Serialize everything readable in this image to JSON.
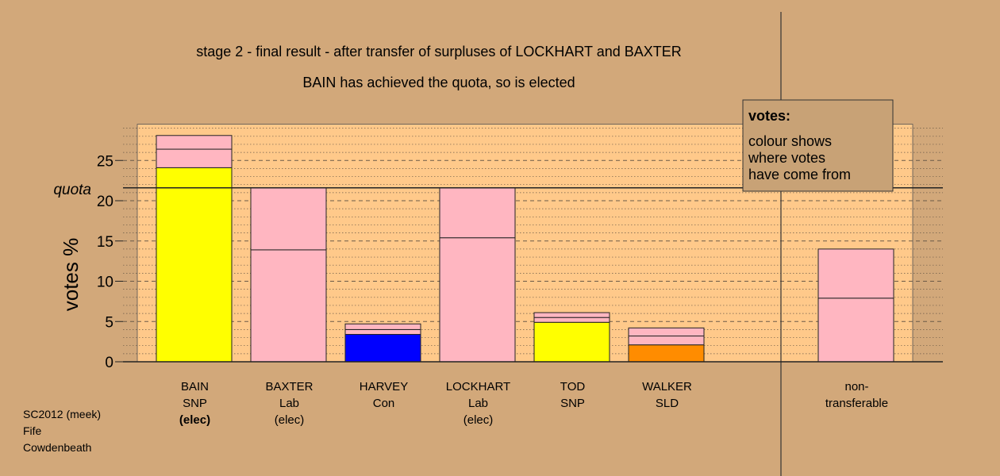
{
  "chart_data": {
    "type": "bar",
    "title": "stage 2 - final result - after transfer of surpluses of LOCKHART and BAXTER",
    "subtitle": "BAIN has achieved the quota, so is elected",
    "ylabel": "votes %",
    "quota_label": "quota",
    "quota_value": 21.6,
    "ylim": [
      0,
      29.5
    ],
    "yticks": [
      0,
      5,
      10,
      15,
      20,
      25
    ],
    "legend": {
      "title": "votes:",
      "lines": [
        "colour shows",
        "where votes",
        "have come from"
      ],
      "placement": "top-right"
    },
    "candidates": [
      {
        "name": "BAIN",
        "party": "SNP",
        "status": "(elec)",
        "status_bold": true,
        "segments": [
          {
            "value": 24.1,
            "color": "#FFFF00"
          },
          {
            "value": 2.3,
            "color": "#FFB6C1"
          },
          {
            "value": 1.7,
            "color": "#FFB6C1"
          }
        ]
      },
      {
        "name": "BAXTER",
        "party": "Lab",
        "status": "(elec)",
        "status_bold": false,
        "segments": [
          {
            "value": 13.9,
            "color": "#FFB6C1"
          },
          {
            "value": 7.7,
            "color": "#FFB6C1"
          }
        ]
      },
      {
        "name": "HARVEY",
        "party": "Con",
        "status": "",
        "status_bold": false,
        "segments": [
          {
            "value": 3.4,
            "color": "#0000FF"
          },
          {
            "value": 0.6,
            "color": "#FFB6C1"
          },
          {
            "value": 0.7,
            "color": "#FFB6C1"
          }
        ]
      },
      {
        "name": "LOCKHART",
        "party": "Lab",
        "status": "(elec)",
        "status_bold": false,
        "segments": [
          {
            "value": 15.4,
            "color": "#FFB6C1"
          },
          {
            "value": 6.2,
            "color": "#FFB6C1"
          }
        ]
      },
      {
        "name": "TOD",
        "party": "SNP",
        "status": "",
        "status_bold": false,
        "segments": [
          {
            "value": 4.9,
            "color": "#FFFF00"
          },
          {
            "value": 0.6,
            "color": "#FFB6C1"
          },
          {
            "value": 0.6,
            "color": "#FFB6C1"
          }
        ]
      },
      {
        "name": "WALKER",
        "party": "SLD",
        "status": "",
        "status_bold": false,
        "segments": [
          {
            "value": 2.1,
            "color": "#FF8C00"
          },
          {
            "value": 1.1,
            "color": "#FFB6C1"
          },
          {
            "value": 1.0,
            "color": "#FFB6C1"
          }
        ]
      }
    ],
    "nontransferable": {
      "label_lines": [
        "non-",
        "transferable"
      ],
      "segments": [
        {
          "value": 7.9,
          "color": "#FFB6C1"
        },
        {
          "value": 6.1,
          "color": "#FFB6C1"
        }
      ]
    },
    "colors": {
      "background": "#D2A87A",
      "plot_area": "#FFC98A",
      "legend_box": "#C8A276",
      "pink": "#FFB6C1"
    }
  },
  "footer": {
    "line1": "SC2012 (meek)",
    "line2": "Fife",
    "line3": "Cowdenbeath"
  }
}
